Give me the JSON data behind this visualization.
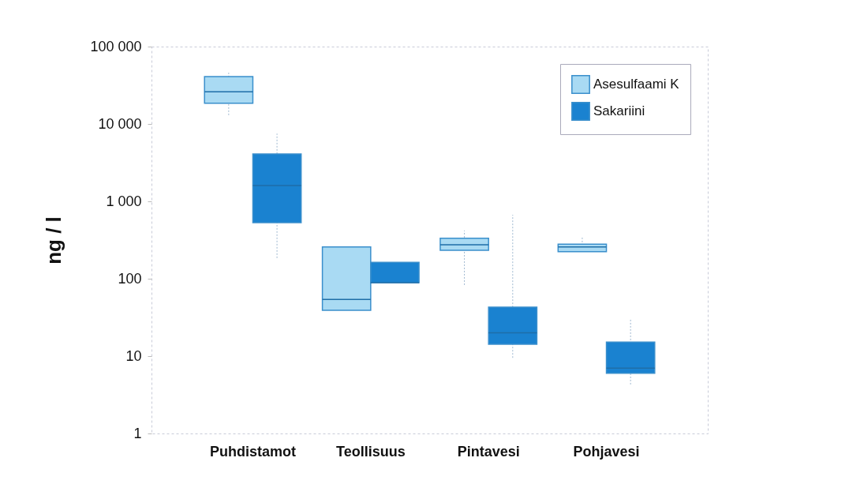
{
  "chart_data": {
    "type": "box",
    "ylabel": "ng / l",
    "categories": [
      "Puhdistamot",
      "Teollisuus",
      "Pintavesi",
      "Pohjavesi"
    ],
    "log": true,
    "ylim": [
      1,
      100000
    ],
    "yticks": [
      1,
      10,
      100,
      {
        "value": 1000,
        "label": "1 000"
      },
      {
        "value": 10000,
        "label": "10 000"
      },
      {
        "value": 100000,
        "label": "100 000"
      }
    ],
    "grid": false,
    "legend": "top right",
    "series": [
      {
        "name": "Asesulfaami K",
        "color": "#a9daf3",
        "boxes": [
          {
            "low": 13000,
            "q1": 18500,
            "median": 26000,
            "q3": 41000,
            "high": 46000
          },
          {
            "low": 39,
            "q1": 39,
            "median": 54,
            "q3": 257,
            "high": 257
          },
          {
            "low": 83,
            "q1": 233,
            "median": 275,
            "q3": 333,
            "high": 420
          },
          {
            "low": 223,
            "q1": 223,
            "median": 257,
            "q3": 280,
            "high": 340
          }
        ]
      },
      {
        "name": "Sakariini",
        "color": "#1a82d0",
        "boxes": [
          {
            "low": 185,
            "q1": 530,
            "median": 1600,
            "q3": 4100,
            "high": 7500
          },
          {
            "low": 89,
            "q1": 89,
            "median": 89,
            "q3": 163,
            "high": 163
          },
          {
            "low": 9.5,
            "q1": 14.2,
            "median": 20,
            "q3": 43,
            "high": 670
          },
          {
            "low": 4.3,
            "q1": 6,
            "median": 7,
            "q3": 15.2,
            "high": 29.5
          }
        ]
      }
    ]
  }
}
